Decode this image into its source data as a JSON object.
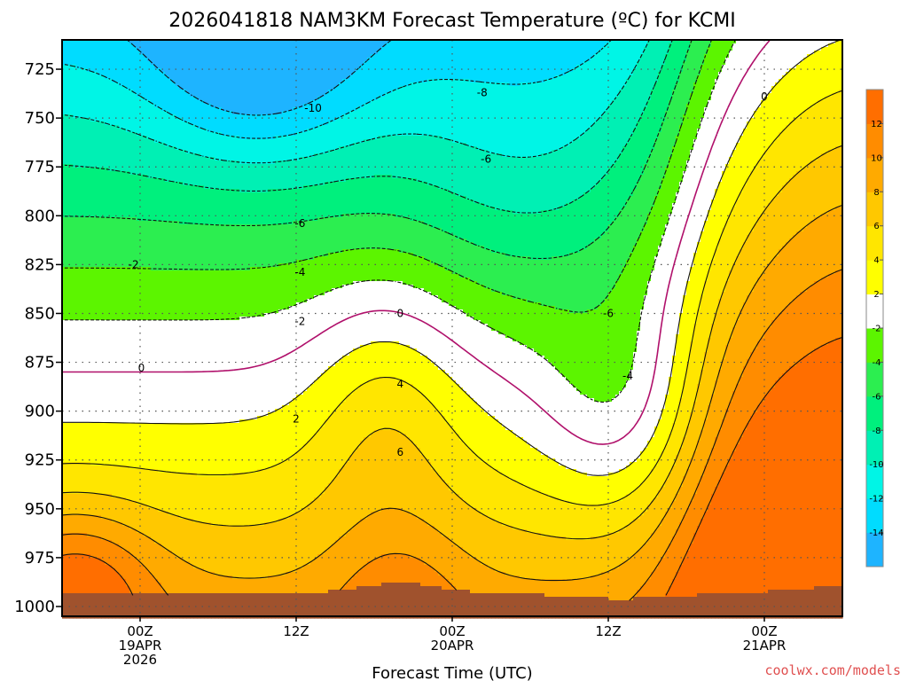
{
  "chart_data": {
    "type": "contour",
    "title": "2026041818 NAM3KM Forecast Temperature (ºC) for KCMI",
    "xlabel": "Forecast Time (UTC)",
    "ylabel": "",
    "y_axis": {
      "unit": "hPa",
      "ylim": [
        710,
        1005
      ],
      "inverted": true,
      "ticks": [
        725,
        750,
        775,
        800,
        825,
        850,
        875,
        900,
        925,
        950,
        975,
        1000
      ],
      "tick_labels": [
        "725",
        "750",
        "775",
        "800",
        "825",
        "850",
        "875",
        "900",
        "925",
        "950",
        "975",
        "1000"
      ]
    },
    "x_axis": {
      "unit": "hours from 2026-04-18 18Z",
      "xlim": [
        0,
        60
      ],
      "ticks": [
        6,
        18,
        30,
        42,
        54
      ],
      "tick_labels": [
        [
          "00Z",
          "19APR",
          "2026"
        ],
        [
          "12Z"
        ],
        [
          "00Z",
          "20APR"
        ],
        [
          "12Z"
        ],
        [
          "00Z",
          "21APR"
        ]
      ]
    },
    "grid": true,
    "colorbar": {
      "placement": "right",
      "levels": [
        -16,
        -14,
        -12,
        -10,
        -8,
        -6,
        -4,
        -2,
        2,
        4,
        6,
        8,
        10,
        12,
        14
      ],
      "tick_labels": [
        "-14",
        "-12",
        "-10",
        "-8",
        "-6",
        "-4",
        "-2",
        "2",
        "4",
        "6",
        "8",
        "10",
        "12"
      ],
      "colors": [
        "#1eb4ff",
        "#00dcff",
        "#00f5e6",
        "#00f0b4",
        "#00f07d",
        "#2cee50",
        "#5cf500",
        "#ffffff",
        "#ffff00",
        "#ffe600",
        "#ffc800",
        "#ffaa00",
        "#ff8c00",
        "#ff6e00"
      ]
    },
    "terrain_color": "#a0522d",
    "contour_labels": [
      {
        "text": "-10",
        "x": 19.3,
        "y": 745
      },
      {
        "text": "-8",
        "x": 32.3,
        "y": 737
      },
      {
        "text": "-6",
        "x": 32.6,
        "y": 771
      },
      {
        "text": "-6",
        "x": 18.3,
        "y": 804
      },
      {
        "text": "-4",
        "x": 18.3,
        "y": 829
      },
      {
        "text": "-2",
        "x": 18.3,
        "y": 854
      },
      {
        "text": "-2",
        "x": 5.5,
        "y": 825
      },
      {
        "text": "0",
        "x": 6.1,
        "y": 878
      },
      {
        "text": "0",
        "x": 26.0,
        "y": 850
      },
      {
        "text": "2",
        "x": 18.0,
        "y": 904
      },
      {
        "text": "4",
        "x": 26.0,
        "y": 886
      },
      {
        "text": "6",
        "x": 26.0,
        "y": 921
      },
      {
        "text": "-6",
        "x": 42.0,
        "y": 850
      },
      {
        "text": "-4",
        "x": 43.5,
        "y": 882
      },
      {
        "text": "0",
        "x": 54.0,
        "y": 739
      }
    ]
  },
  "credit": "coolwx.com/models"
}
